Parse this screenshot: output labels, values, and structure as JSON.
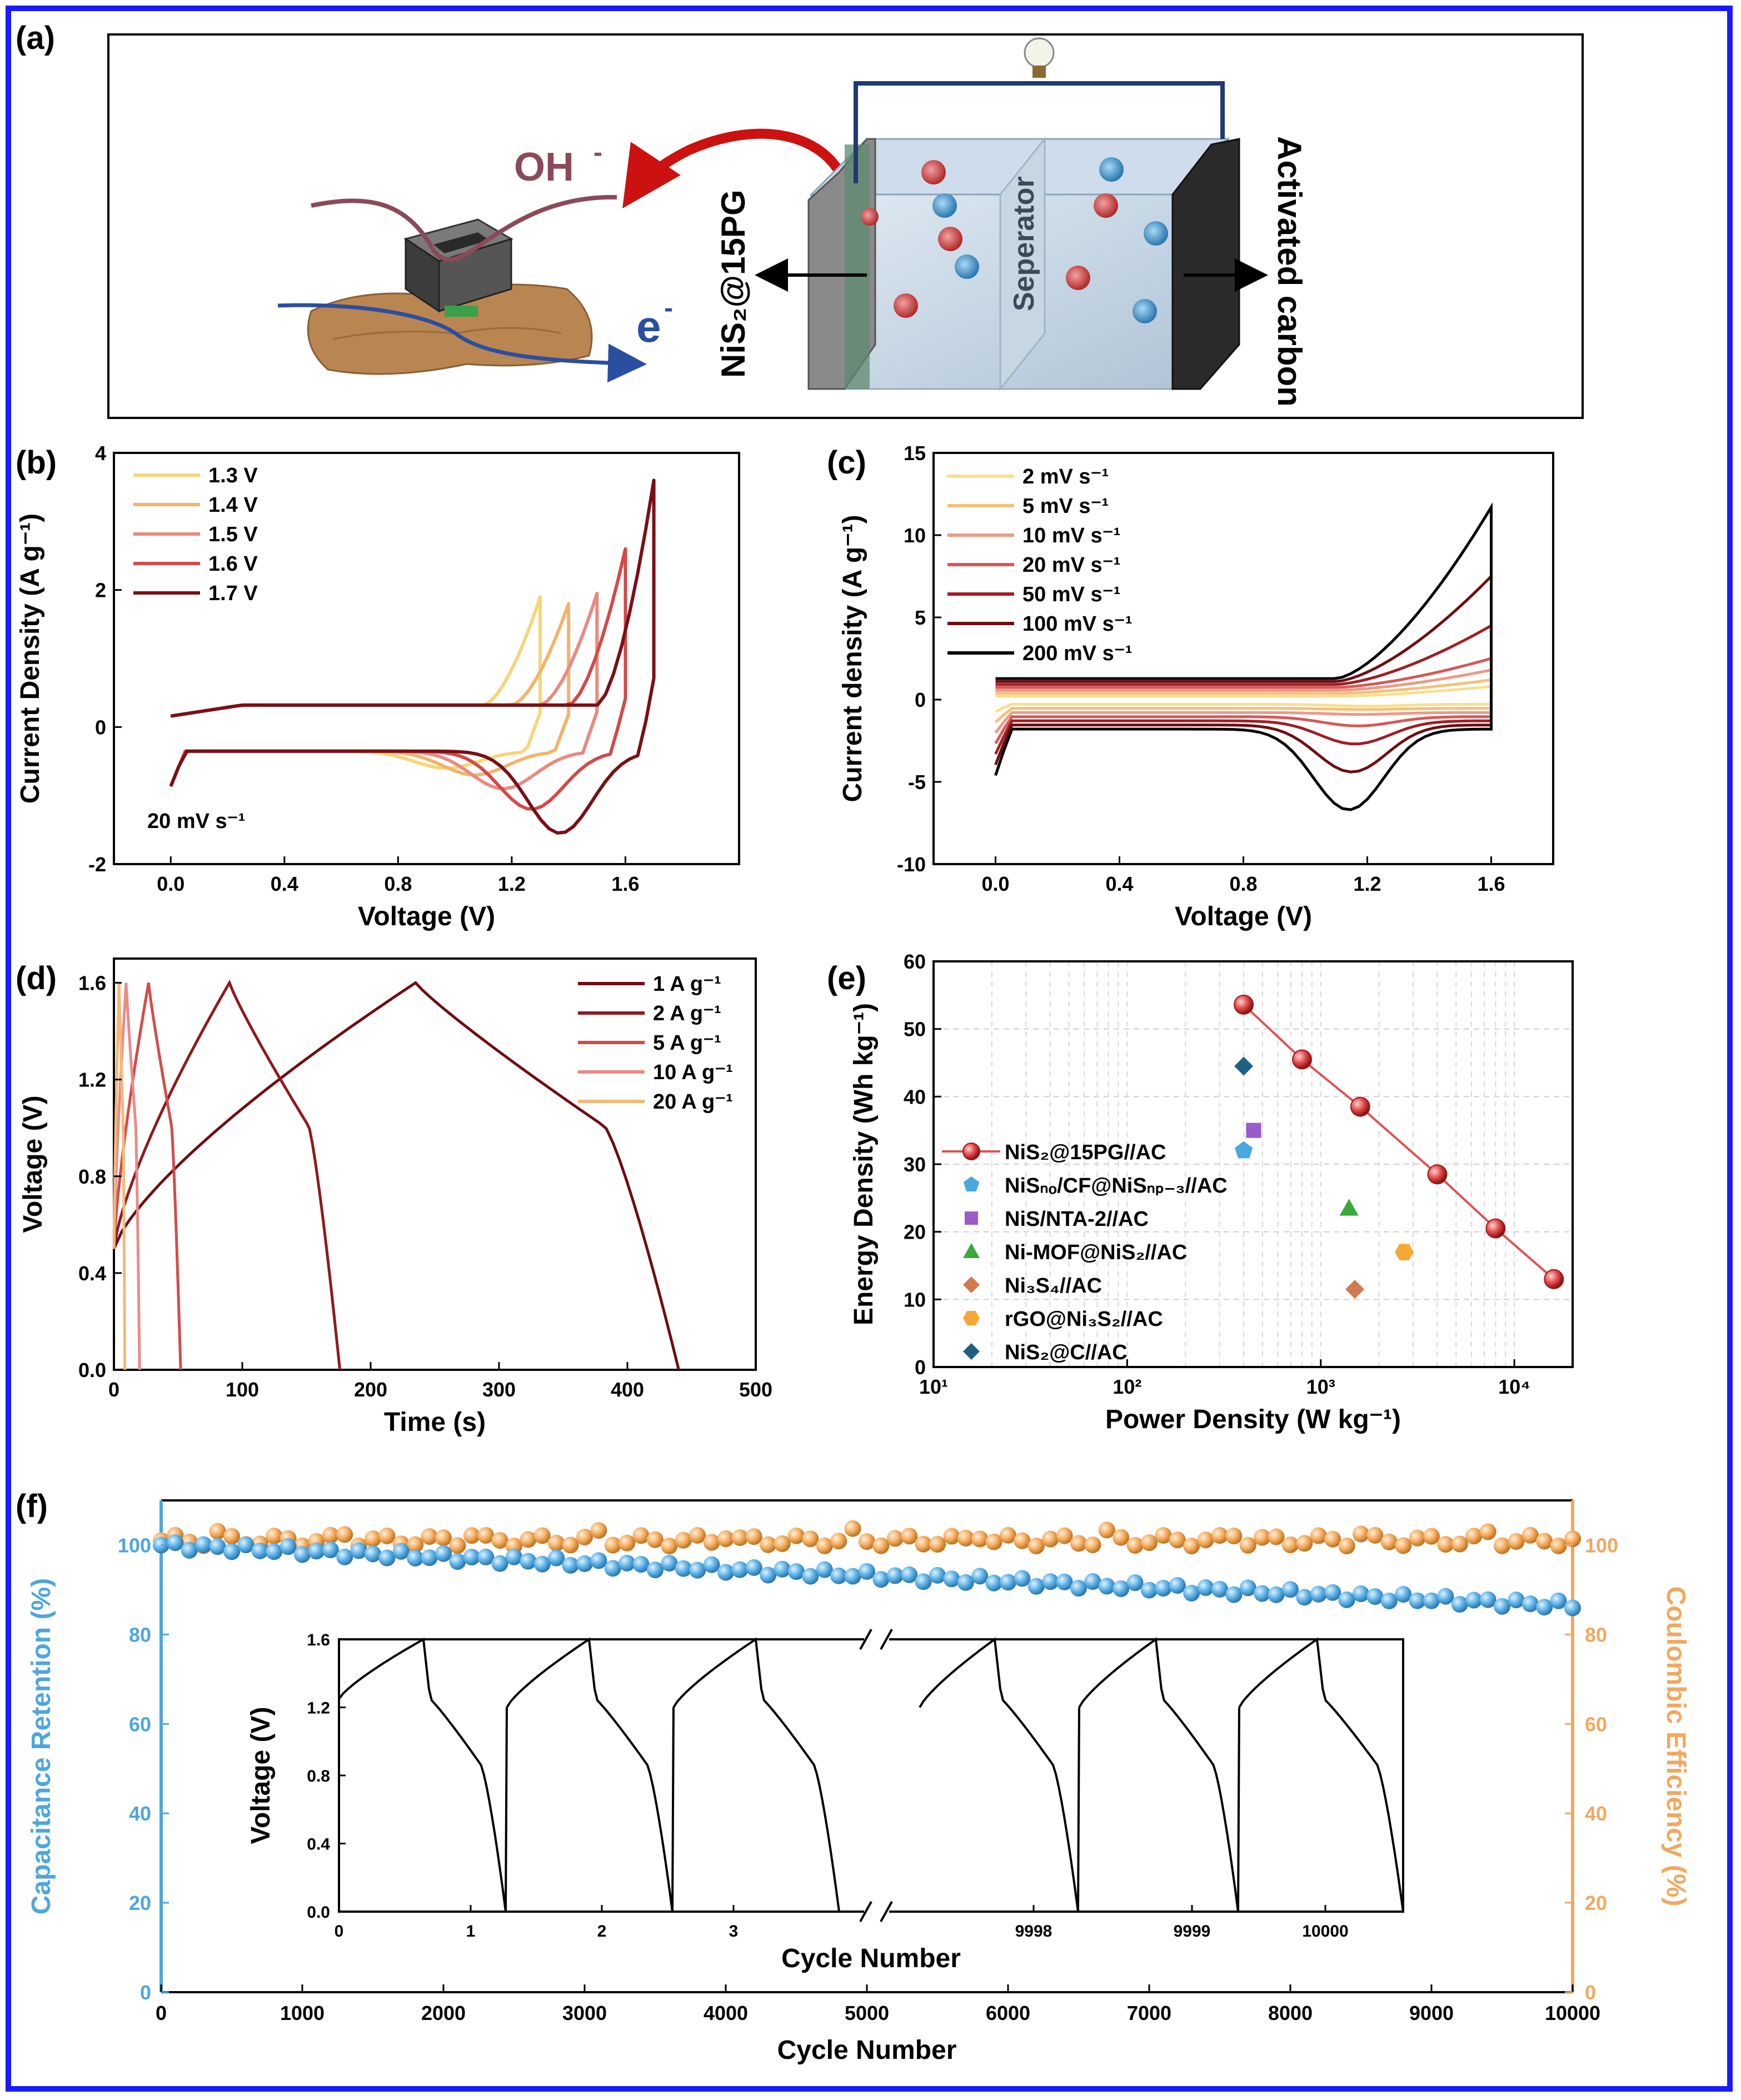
{
  "panel_labels": [
    "(a)",
    "(b)",
    "(c)",
    "(d)",
    "(e)",
    "(f)"
  ],
  "schematic": {
    "ion_label": "OH",
    "ion_charge": "-",
    "electron_label": "e",
    "electron_charge": "-",
    "left_electrode": "NiS₂@15PG",
    "separator": "Seperator",
    "right_electrode": "Activated carbon",
    "colors": {
      "ion_arrow": "#cc1111",
      "electron_line": "#2a4fa0",
      "ion_line": "#8a4a5a",
      "cell_frame": "#1e3a6e"
    }
  },
  "chart_data": [
    {
      "panel": "b",
      "type": "line",
      "xlabel": "Voltage (V)",
      "ylabel": "Current Density (A g⁻¹)",
      "xlim": [
        -0.2,
        2.0
      ],
      "ylim": [
        -2,
        4
      ],
      "xticks": [
        "0.0",
        "0.4",
        "0.8",
        "1.2",
        "1.6"
      ],
      "yticks": [
        "-2",
        "0",
        "2",
        "4"
      ],
      "annotation": "20 mV s⁻¹",
      "legend_position": "top-left",
      "series": [
        {
          "name": "1.3 V",
          "color": "#f6d67a",
          "vmax": 1.3,
          "peak_anodic": 1.9,
          "peak_cathodic": -0.6
        },
        {
          "name": "1.4 V",
          "color": "#f1b46a",
          "vmax": 1.4,
          "peak_anodic": 1.8,
          "peak_cathodic": -0.7
        },
        {
          "name": "1.5 V",
          "color": "#e98a80",
          "vmax": 1.5,
          "peak_anodic": 1.95,
          "peak_cathodic": -0.9
        },
        {
          "name": "1.6 V",
          "color": "#d54848",
          "vmax": 1.6,
          "peak_anodic": 2.6,
          "peak_cathodic": -1.2
        },
        {
          "name": "1.7 V",
          "color": "#7a0f16",
          "vmax": 1.7,
          "peak_anodic": 3.6,
          "peak_cathodic": -1.55
        }
      ]
    },
    {
      "panel": "c",
      "type": "line",
      "xlabel": "Voltage (V)",
      "ylabel": "Current density (A g⁻¹)",
      "xlim": [
        -0.2,
        1.8
      ],
      "ylim": [
        -10,
        15
      ],
      "xticks": [
        "0.0",
        "0.4",
        "0.8",
        "1.2",
        "1.6"
      ],
      "yticks": [
        "-10",
        "-5",
        "0",
        "5",
        "10",
        "15"
      ],
      "legend_position": "top-left",
      "series": [
        {
          "name": "2 mV s⁻¹",
          "color": "#f8df90",
          "peak_anodic": 0.8,
          "peak_cathodic": -0.4
        },
        {
          "name": "5 mV s⁻¹",
          "color": "#f4c07a",
          "peak_anodic": 1.2,
          "peak_cathodic": -0.6
        },
        {
          "name": "10 mV s⁻¹",
          "color": "#ec9a86",
          "peak_anodic": 1.8,
          "peak_cathodic": -0.9
        },
        {
          "name": "20 mV s⁻¹",
          "color": "#d95757",
          "peak_anodic": 2.5,
          "peak_cathodic": -1.6
        },
        {
          "name": "50 mV s⁻¹",
          "color": "#a11d24",
          "peak_anodic": 4.5,
          "peak_cathodic": -2.7
        },
        {
          "name": "100 mV s⁻¹",
          "color": "#6e0d12",
          "peak_anodic": 7.5,
          "peak_cathodic": -4.4
        },
        {
          "name": "200 mV s⁻¹",
          "color": "#000000",
          "peak_anodic": 11.7,
          "peak_cathodic": -6.7
        }
      ]
    },
    {
      "panel": "d",
      "type": "line",
      "xlabel": "Time (s)",
      "ylabel": "Voltage (V)",
      "xlim": [
        0,
        500
      ],
      "ylim": [
        0,
        1.7
      ],
      "xticks": [
        "0",
        "100",
        "200",
        "300",
        "400",
        "500"
      ],
      "yticks": [
        "0.0",
        "0.4",
        "0.8",
        "1.2",
        "1.6"
      ],
      "legend_position": "top-right",
      "series": [
        {
          "name": "1 A g⁻¹",
          "color": "#6e0d12",
          "charge_end": 235,
          "discharge_end": 440
        },
        {
          "name": "2 A g⁻¹",
          "color": "#8e1a1e",
          "charge_end": 90,
          "discharge_end": 176
        },
        {
          "name": "5 A g⁻¹",
          "color": "#d44a4a",
          "charge_end": 27,
          "discharge_end": 52
        },
        {
          "name": "10 A g⁻¹",
          "color": "#ea8a88",
          "charge_end": 9.5,
          "discharge_end": 20
        },
        {
          "name": "20 A g⁻¹",
          "color": "#f3b877",
          "charge_end": 4,
          "discharge_end": 8.5
        }
      ]
    },
    {
      "panel": "e",
      "type": "scatter",
      "xlabel": "Power Density (W kg⁻¹)",
      "ylabel": "Energy Density (Wh kg⁻¹)",
      "xscale": "log",
      "xlim": [
        10,
        20000
      ],
      "ylim": [
        0,
        60
      ],
      "xticks": [
        "10¹",
        "10²",
        "10³",
        "10⁴"
      ],
      "yticks": [
        "0",
        "10",
        "20",
        "30",
        "40",
        "50",
        "60"
      ],
      "grid": true,
      "legend_position": "left",
      "series": [
        {
          "name": "NiS₂@15PG//AC",
          "marker": "sphere",
          "color": "#e04848",
          "line": true,
          "points": [
            [
              400,
              53.6
            ],
            [
              800,
              45.5
            ],
            [
              1600,
              38.5
            ],
            [
              4000,
              28.5
            ],
            [
              8000,
              20.5
            ],
            [
              16000,
              13
            ]
          ]
        },
        {
          "name": "NiSₙₒ/CF@NiSₙₚ₋₃//AC",
          "marker": "pentagon",
          "color": "#4aa8e0",
          "points": [
            [
              400,
              32
            ]
          ]
        },
        {
          "name": "NiS/NTA-2//AC",
          "marker": "square",
          "color": "#9a5cc8",
          "points": [
            [
              450,
              35
            ]
          ]
        },
        {
          "name": "Ni-MOF@NiS₂//AC",
          "marker": "triangle",
          "color": "#3aa83a",
          "points": [
            [
              1400,
              23.5
            ]
          ]
        },
        {
          "name": "Ni₃S₄//AC",
          "marker": "diamond",
          "color": "#d07a50",
          "points": [
            [
              1500,
              11.5
            ]
          ]
        },
        {
          "name": "rGO@Ni₃S₂//AC",
          "marker": "hexagon",
          "color": "#f5a833",
          "points": [
            [
              2700,
              17
            ]
          ]
        },
        {
          "name": "NiS₂@C//AC",
          "marker": "diamond",
          "color": "#1f5f82",
          "points": [
            [
              400,
              44.5
            ]
          ]
        }
      ]
    },
    {
      "panel": "f",
      "type": "scatter",
      "xlabel": "Cycle Number",
      "ylabel_left": "Capacitance Retention (%)",
      "ylabel_right": "Coulombic Efficiency (%)",
      "xlim": [
        0,
        10000
      ],
      "ylim": [
        0,
        110
      ],
      "xticks": [
        "0",
        "1000",
        "2000",
        "3000",
        "4000",
        "5000",
        "6000",
        "7000",
        "8000",
        "9000",
        "10000"
      ],
      "yticks": [
        "0",
        "20",
        "40",
        "60",
        "80",
        "100"
      ],
      "colors": {
        "left_axis": "#4ea6dc",
        "right_axis": "#f0a860"
      },
      "series": [
        {
          "name": "Capacitance Retention",
          "color": "#5fb3e8",
          "start": 100,
          "end": 86.5
        },
        {
          "name": "Coulombic Efficiency",
          "color": "#f5ad62",
          "mean": 101
        }
      ],
      "inset": {
        "type": "line",
        "xlabel": "Cycle Number",
        "ylabel": "Voltage (V)",
        "ylim": [
          0,
          1.6
        ],
        "xticks": [
          "0",
          "1",
          "2",
          "3",
          "9998",
          "9999",
          "10000"
        ],
        "yticks": [
          "0.0",
          "0.4",
          "0.8",
          "1.2",
          "1.6"
        ]
      }
    }
  ]
}
